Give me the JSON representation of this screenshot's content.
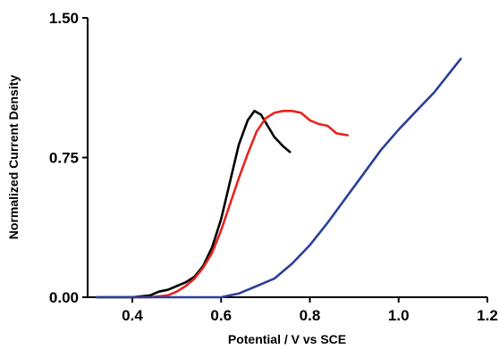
{
  "chart_data": {
    "type": "line",
    "title": "",
    "xlabel": "Potential / V vs SCE",
    "ylabel": "Normalized Current Density",
    "xlim": [
      0.3,
      1.2
    ],
    "ylim": [
      0.0,
      1.5
    ],
    "x_ticks": [
      {
        "value": 0.4,
        "label": "0.4"
      },
      {
        "value": 0.6,
        "label": "0.6"
      },
      {
        "value": 0.8,
        "label": "0.8"
      },
      {
        "value": 1.0,
        "label": "1.0"
      },
      {
        "value": 1.2,
        "label": "1.2"
      }
    ],
    "y_ticks": [
      {
        "value": 0.0,
        "label": "0.00"
      },
      {
        "value": 0.75,
        "label": "0.75"
      },
      {
        "value": 1.5,
        "label": "1.50"
      }
    ],
    "grid": false,
    "series": [
      {
        "color": "#000000",
        "x": [
          0.32,
          0.36,
          0.4,
          0.44,
          0.46,
          0.48,
          0.5,
          0.52,
          0.54,
          0.56,
          0.58,
          0.6,
          0.62,
          0.64,
          0.66,
          0.675,
          0.69,
          0.7,
          0.72,
          0.74,
          0.755
        ],
        "y": [
          0.0,
          0.0,
          0.0,
          0.01,
          0.03,
          0.04,
          0.06,
          0.08,
          0.11,
          0.17,
          0.27,
          0.42,
          0.62,
          0.82,
          0.95,
          1.0,
          0.98,
          0.94,
          0.86,
          0.81,
          0.78
        ]
      },
      {
        "color": "#e8231c",
        "x": [
          0.4,
          0.44,
          0.48,
          0.5,
          0.52,
          0.54,
          0.56,
          0.58,
          0.6,
          0.62,
          0.64,
          0.66,
          0.68,
          0.7,
          0.72,
          0.74,
          0.76,
          0.78,
          0.8,
          0.82,
          0.84,
          0.86,
          0.885
        ],
        "y": [
          0.0,
          0.0,
          0.01,
          0.03,
          0.06,
          0.1,
          0.16,
          0.24,
          0.36,
          0.5,
          0.64,
          0.77,
          0.89,
          0.96,
          0.99,
          1.0,
          1.0,
          0.99,
          0.95,
          0.93,
          0.92,
          0.88,
          0.87
        ]
      },
      {
        "color": "#2b3f9a",
        "x": [
          0.32,
          0.4,
          0.5,
          0.56,
          0.6,
          0.62,
          0.64,
          0.66,
          0.68,
          0.7,
          0.72,
          0.76,
          0.8,
          0.84,
          0.88,
          0.92,
          0.96,
          1.0,
          1.04,
          1.08,
          1.12,
          1.14
        ],
        "y": [
          0.0,
          0.0,
          0.0,
          0.0,
          0.0,
          0.01,
          0.02,
          0.04,
          0.06,
          0.08,
          0.1,
          0.18,
          0.28,
          0.4,
          0.53,
          0.66,
          0.79,
          0.9,
          1.0,
          1.1,
          1.22,
          1.28
        ]
      }
    ]
  }
}
